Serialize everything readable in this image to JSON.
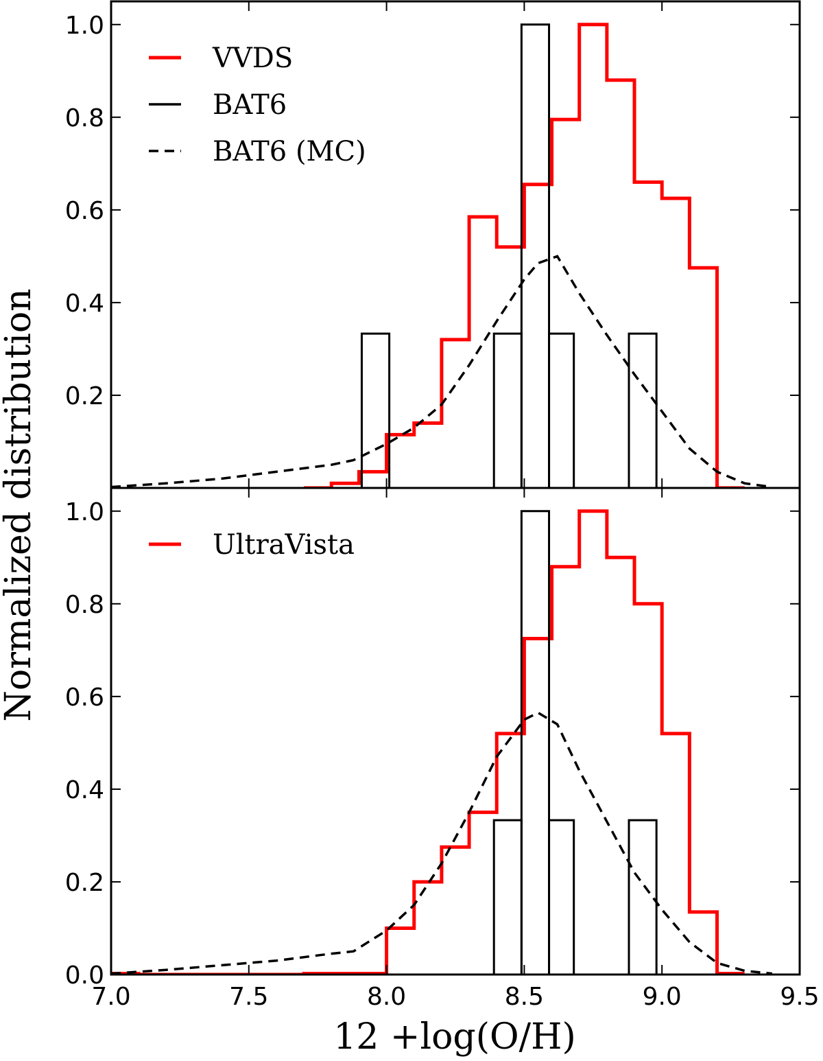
{
  "figure": {
    "xlabel": "12 +log(O/H)",
    "ylabel": "Normalized distribution"
  },
  "chart_data": [
    {
      "type": "histogram-step",
      "panel": "top",
      "xlim": [
        7.0,
        9.5
      ],
      "ylim": [
        0.0,
        1.05
      ],
      "x_ticks": [
        "7.0",
        "7.5",
        "8.0",
        "8.5",
        "9.0",
        "9.5"
      ],
      "y_ticks": [
        "0.2",
        "0.4",
        "0.6",
        "0.8",
        "1.0"
      ],
      "y_tick_values": [
        0.2,
        0.4,
        0.6,
        0.8,
        1.0
      ],
      "legend_position": "top-left",
      "series": [
        {
          "name": "VVDS",
          "style": "step",
          "color": "#ff0000",
          "edges": [
            7.7,
            7.8,
            7.9,
            8.0,
            8.1,
            8.2,
            8.3,
            8.4,
            8.5,
            8.6,
            8.7,
            8.8,
            8.9,
            9.0,
            9.1,
            9.2,
            9.3
          ],
          "values": [
            0.0,
            0.01,
            0.035,
            0.115,
            0.14,
            0.32,
            0.585,
            0.52,
            0.655,
            0.795,
            1.0,
            0.88,
            0.66,
            0.625,
            0.475,
            0.0
          ]
        },
        {
          "name": "BAT6",
          "style": "bars",
          "color": "#000000",
          "bins": [
            {
              "left": 7.91,
              "right": 8.01,
              "value": 0.333
            },
            {
              "left": 8.39,
              "right": 8.49,
              "value": 0.333
            },
            {
              "left": 8.49,
              "right": 8.59,
              "value": 1.0
            },
            {
              "left": 8.59,
              "right": 8.68,
              "value": 0.333
            },
            {
              "left": 8.88,
              "right": 8.98,
              "value": 0.333
            }
          ]
        },
        {
          "name": "BAT6 (MC)",
          "style": "dashed",
          "color": "#000000",
          "x": [
            7.0,
            7.2,
            7.4,
            7.6,
            7.8,
            7.88,
            8.0,
            8.1,
            8.2,
            8.3,
            8.4,
            8.5,
            8.55,
            8.62,
            8.7,
            8.8,
            8.9,
            9.0,
            9.1,
            9.2,
            9.3,
            9.4
          ],
          "y": [
            0.002,
            0.01,
            0.02,
            0.035,
            0.05,
            0.06,
            0.095,
            0.13,
            0.18,
            0.265,
            0.36,
            0.45,
            0.485,
            0.5,
            0.42,
            0.33,
            0.245,
            0.165,
            0.085,
            0.035,
            0.01,
            0.002
          ]
        }
      ]
    },
    {
      "type": "histogram-step",
      "panel": "bottom",
      "xlim": [
        7.0,
        9.5
      ],
      "ylim": [
        0.0,
        1.05
      ],
      "x_ticks": [
        "7.0",
        "7.5",
        "8.0",
        "8.5",
        "9.0",
        "9.5"
      ],
      "y_ticks": [
        "0.0",
        "0.2",
        "0.4",
        "0.6",
        "0.8",
        "1.0"
      ],
      "y_tick_values": [
        0.0,
        0.2,
        0.4,
        0.6,
        0.8,
        1.0
      ],
      "legend_position": "top-left",
      "series": [
        {
          "name": "UltraVista",
          "style": "step",
          "color": "#ff0000",
          "edges": [
            7.0,
            7.1,
            7.2,
            7.3,
            7.4,
            7.5,
            7.6,
            7.7,
            7.8,
            7.9,
            8.0,
            8.1,
            8.2,
            8.3,
            8.4,
            8.5,
            8.6,
            8.7,
            8.8,
            8.9,
            9.0,
            9.1,
            9.2,
            9.3
          ],
          "values": [
            0.002,
            0.0,
            0.0,
            0.0,
            0.0,
            0.0,
            0.0,
            0.002,
            0.002,
            0.002,
            0.1,
            0.2,
            0.275,
            0.35,
            0.52,
            0.725,
            0.88,
            1.0,
            0.9,
            0.8,
            0.52,
            0.135,
            0.002
          ]
        },
        {
          "name": "BAT6",
          "style": "bars",
          "color": "#000000",
          "bins": [
            {
              "left": 8.39,
              "right": 8.49,
              "value": 0.333
            },
            {
              "left": 8.49,
              "right": 8.59,
              "value": 1.0
            },
            {
              "left": 8.59,
              "right": 8.68,
              "value": 0.333
            },
            {
              "left": 8.88,
              "right": 8.98,
              "value": 0.333
            }
          ]
        },
        {
          "name": "BAT6 (MC)",
          "style": "dashed",
          "color": "#000000",
          "x": [
            7.0,
            7.2,
            7.4,
            7.6,
            7.8,
            7.88,
            8.0,
            8.1,
            8.2,
            8.3,
            8.4,
            8.5,
            8.55,
            8.62,
            8.7,
            8.8,
            8.9,
            9.0,
            9.1,
            9.2,
            9.3,
            9.4
          ],
          "y": [
            0.002,
            0.01,
            0.02,
            0.03,
            0.045,
            0.05,
            0.095,
            0.15,
            0.24,
            0.35,
            0.47,
            0.55,
            0.565,
            0.54,
            0.44,
            0.33,
            0.22,
            0.14,
            0.07,
            0.025,
            0.008,
            0.002
          ]
        }
      ]
    }
  ]
}
